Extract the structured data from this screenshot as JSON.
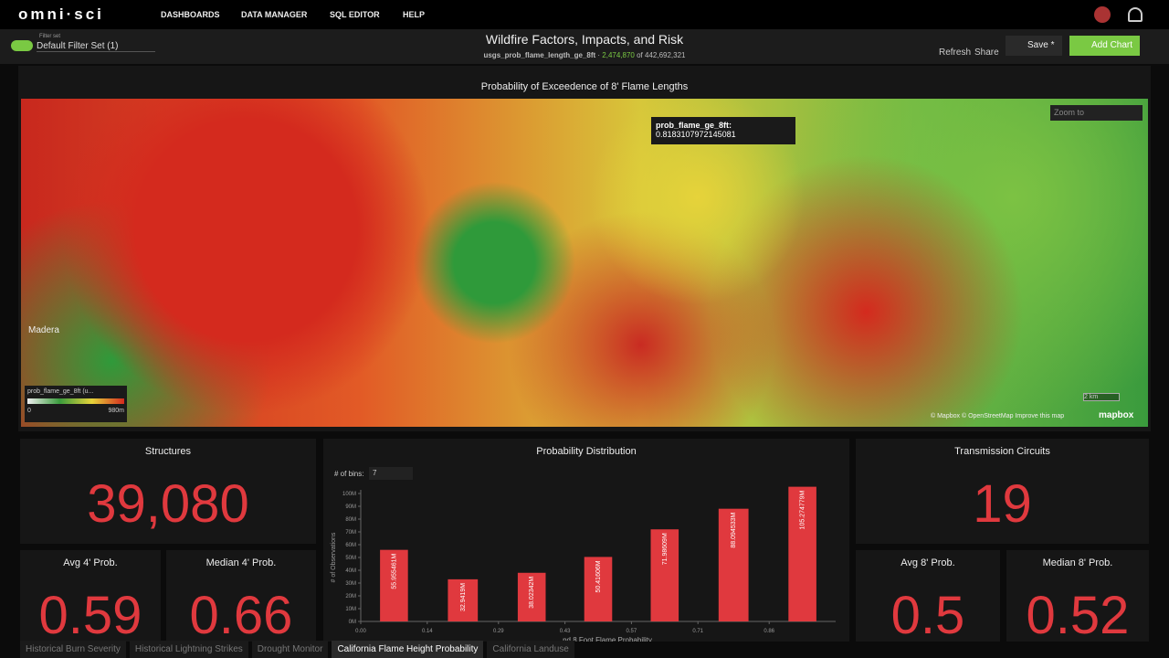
{
  "nav": {
    "brand": "omni·sci",
    "menu": [
      "DASHBOARDS",
      "DATA MANAGER",
      "SQL EDITOR",
      "HELP"
    ]
  },
  "toolbar": {
    "filter_label": "Filter set",
    "filter_set": "Default Filter Set (1)",
    "title": "Wildfire Factors, Impacts, and Risk",
    "source": "usgs_prob_flame_length_ge_8ft",
    "filtered": "2,474,870",
    "of": "of",
    "total": "442,692,321",
    "refresh": "Refresh",
    "share": "Share",
    "save": "Save *",
    "add_chart": "Add Chart"
  },
  "map": {
    "title": "Probability of Exceedence of 8' Flame Lengths",
    "tooltip_label": "prob_flame_ge_8ft:",
    "tooltip_value": "0.8183107972145081",
    "zoom_placeholder": "Zoom to",
    "place": "Madera",
    "legend_title": "prob_flame_ge_8ft (u...",
    "legend_min": "0",
    "legend_max": "980m",
    "scale": "2 km",
    "attribution": [
      "© Mapbox",
      "© OpenStreetMap",
      "Improve this map"
    ],
    "logo": "mapbox"
  },
  "numbers": [
    {
      "title": "Structures",
      "value": "39,080"
    },
    {
      "title": "Transmission Circuits",
      "value": "19"
    },
    {
      "title": "Avg 4' Prob.",
      "value": "0.59"
    },
    {
      "title": "Median 4' Prob.",
      "value": "0.66"
    },
    {
      "title": "Avg 8' Prob.",
      "value": "0.5"
    },
    {
      "title": "Median 8' Prob.",
      "value": "0.52"
    }
  ],
  "chart_data": {
    "type": "histogram",
    "title": "Probability Distribution",
    "bins_label": "# of bins:",
    "bins_count": "7",
    "y_label": "# of Observations",
    "x_label": "nd 8 Foot Flame Probability",
    "bins": [
      0,
      0.14,
      0.29,
      0.43,
      0.57,
      0.71,
      0.86,
      1
    ],
    "values": [
      55955461,
      32941900,
      38023420,
      50416060,
      71986090,
      88094533,
      105274779
    ],
    "value_labels": [
      "55.955461M",
      "32.9419M",
      "38.02342M",
      "50.41606M",
      "71.98609M",
      "88.094533M",
      "105.274779M"
    ],
    "color": "#e0393e",
    "xlim": [
      0,
      1
    ],
    "xticks": [
      {
        "value": 0,
        "label": "0.00"
      },
      0.14,
      0.29,
      0.43,
      0.57,
      0.71,
      0.86
    ],
    "ylim": [
      0,
      100000000
    ],
    "yticks": [
      {
        "value": 0,
        "label": "0M"
      },
      {
        "value": 10000000,
        "label": "10M"
      },
      {
        "value": 20000000,
        "label": "20M"
      },
      {
        "value": 30000000,
        "label": "30M"
      },
      {
        "value": 40000000,
        "label": "40M"
      },
      {
        "value": 50000000,
        "label": "50M"
      },
      {
        "value": 60000000,
        "label": "60M"
      },
      {
        "value": 70000000,
        "label": "70M"
      },
      {
        "value": 80000000,
        "label": "80M"
      },
      {
        "value": 90000000,
        "label": "90M"
      },
      {
        "value": 100000000,
        "label": "100M"
      }
    ]
  },
  "tabs": [
    "Historical Burn Severity",
    "Historical Lightning Strikes",
    "Drought Monitor",
    "California Flame Height Probability",
    "California Landuse"
  ]
}
